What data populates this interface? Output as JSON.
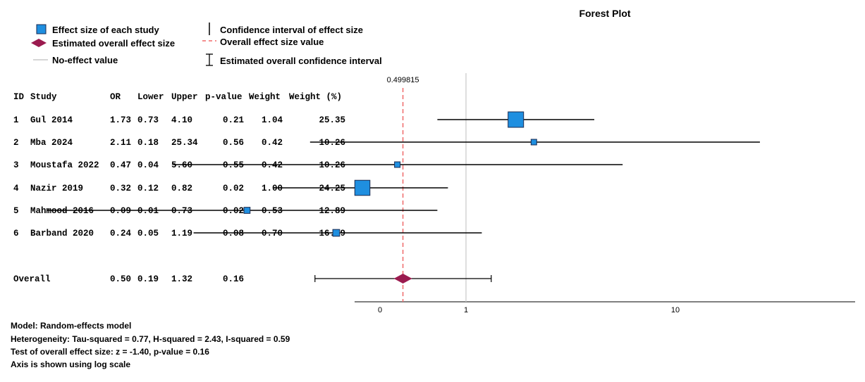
{
  "chart_data": {
    "type": "forest",
    "title": "Forest Plot",
    "columns": [
      "ID",
      "Study",
      "OR",
      "Lower",
      "Upper",
      "p-value",
      "Weight",
      "Weight (%)"
    ],
    "studies": [
      {
        "id": "1",
        "study": "Gul 2014",
        "or": "1.73",
        "lower": "0.73",
        "upper": "4.10",
        "p": "0.21",
        "weight": "1.04",
        "weight_pct": "25.35"
      },
      {
        "id": "2",
        "study": "Mba 2024",
        "or": "2.11",
        "lower": "0.18",
        "upper": "25.34",
        "p": "0.56",
        "weight": "0.42",
        "weight_pct": "10.26"
      },
      {
        "id": "3",
        "study": "Moustafa 2022",
        "or": "0.47",
        "lower": "0.04",
        "upper": "5.60",
        "p": "0.55",
        "weight": "0.42",
        "weight_pct": "10.26"
      },
      {
        "id": "4",
        "study": "Nazir 2019",
        "or": "0.32",
        "lower": "0.12",
        "upper": "0.82",
        "p": "0.02",
        "weight": "1.00",
        "weight_pct": "24.25"
      },
      {
        "id": "5",
        "study": "Mahmood 2016",
        "or": "0.09",
        "lower": "0.01",
        "upper": "0.73",
        "p": "0.02",
        "weight": "0.53",
        "weight_pct": "12.89"
      },
      {
        "id": "6",
        "study": "Barband 2020",
        "or": "0.24",
        "lower": "0.05",
        "upper": "1.19",
        "p": "0.08",
        "weight": "0.70",
        "weight_pct": "16.99"
      }
    ],
    "overall": {
      "label": "Overall",
      "or": "0.50",
      "lower": "0.19",
      "upper": "1.32",
      "p": "0.16"
    },
    "overall_effect_label": "0.499815",
    "no_effect_value": 1,
    "x_ticks": [
      "0",
      "1",
      "10"
    ],
    "x_scale": "log",
    "legend": {
      "effect_size": "Effect size of each study",
      "ci": "Confidence interval of effect size",
      "overall_effect": "Estimated overall effect size",
      "overall_value": "Overall effect size value",
      "no_effect": "No-effect value",
      "overall_ci": "Estimated overall confidence interval"
    },
    "colors": {
      "square": "#1f8fe0",
      "diamond": "#9b1b4f",
      "overall_line": "#f06a6a",
      "no_effect_line": "#c8c8c8"
    }
  },
  "footer": {
    "model": "Model: Random-effects model",
    "heterogeneity": "Heterogeneity: Tau-squared = 0.77, H-squared = 2.43, I-squared = 0.59",
    "test": "Test of overall effect size: z = -1.40, p-value = 0.16",
    "axis": "Axis is shown using log scale"
  }
}
